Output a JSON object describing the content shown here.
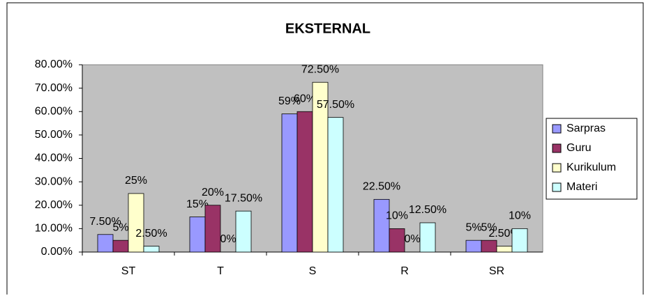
{
  "chart_data": {
    "type": "bar",
    "title": "EKSTERNAL",
    "categories": [
      "ST",
      "T",
      "S",
      "R",
      "SR"
    ],
    "series": [
      {
        "name": "Sarpras",
        "color": "#9999ff",
        "values": [
          7.5,
          15,
          59,
          22.5,
          5
        ],
        "value_labels": [
          "7.50%",
          "15%",
          "59%",
          "22.50%",
          "5%"
        ]
      },
      {
        "name": "Guru",
        "color": "#993366",
        "values": [
          5,
          20,
          60,
          10,
          5
        ],
        "value_labels": [
          "5%",
          "20%",
          "60%",
          "10%",
          "5%"
        ]
      },
      {
        "name": "Kurikulum",
        "color": "#ffffcc",
        "values": [
          25,
          0,
          72.5,
          0,
          2.5
        ],
        "value_labels": [
          "25%",
          "0%",
          "72.50%",
          "0%",
          "2.50%"
        ]
      },
      {
        "name": "Materi",
        "color": "#ccffff",
        "values": [
          2.5,
          17.5,
          57.5,
          12.5,
          10
        ],
        "value_labels": [
          "2.50%",
          "17.50%",
          "57.50%",
          "12.50%",
          "10%"
        ]
      }
    ],
    "ylim": [
      0,
      80
    ],
    "yticks": [
      {
        "value": 0,
        "label": "0.00%"
      },
      {
        "value": 10,
        "label": "10.00%"
      },
      {
        "value": 20,
        "label": "20.00%"
      },
      {
        "value": 30,
        "label": "30.00%"
      },
      {
        "value": 40,
        "label": "40.00%"
      },
      {
        "value": 50,
        "label": "50.00%"
      },
      {
        "value": 60,
        "label": "60.00%"
      },
      {
        "value": 70,
        "label": "70.00%"
      },
      {
        "value": 80,
        "label": "80.00%"
      }
    ],
    "legend": "right"
  }
}
